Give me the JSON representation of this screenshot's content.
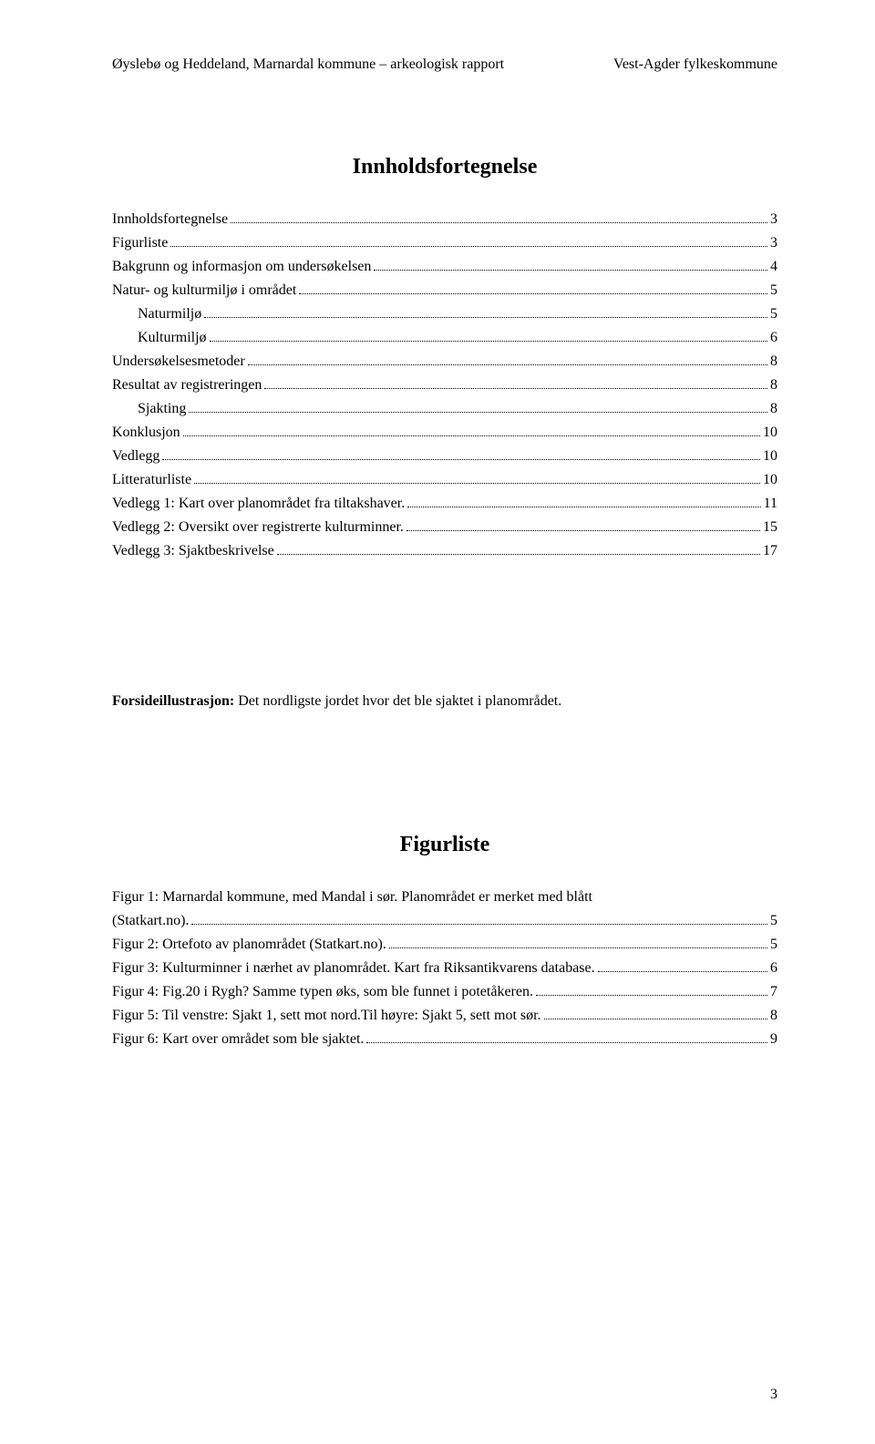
{
  "header": {
    "left": "Øyslebø og Heddeland, Marnardal kommune – arkeologisk rapport",
    "right": "Vest-Agder fylkeskommune"
  },
  "title_main": "Innholdsfortegnelse",
  "toc": [
    {
      "label": "Innholdsfortegnelse",
      "page": "3",
      "indent": false
    },
    {
      "label": "Figurliste",
      "page": "3",
      "indent": false
    },
    {
      "label": "Bakgrunn og informasjon om undersøkelsen",
      "page": "4",
      "indent": false
    },
    {
      "label": "Natur- og kulturmiljø i området",
      "page": "5",
      "indent": false
    },
    {
      "label": "Naturmiljø",
      "page": "5",
      "indent": true
    },
    {
      "label": "Kulturmiljø",
      "page": "6",
      "indent": true
    },
    {
      "label": "Undersøkelsesmetoder",
      "page": "8",
      "indent": false
    },
    {
      "label": "Resultat av registreringen",
      "page": "8",
      "indent": false
    },
    {
      "label": "Sjakting",
      "page": "8",
      "indent": true
    },
    {
      "label": "Konklusjon",
      "page": "10",
      "indent": false
    },
    {
      "label": "Vedlegg",
      "page": "10",
      "indent": false
    },
    {
      "label": "Litteraturliste",
      "page": "10",
      "indent": false
    },
    {
      "label": "Vedlegg 1: Kart over planområdet fra tiltakshaver.",
      "page": "11",
      "indent": false
    },
    {
      "label": "Vedlegg 2: Oversikt over registrerte kulturminner.",
      "page": "15",
      "indent": false
    },
    {
      "label": "Vedlegg 3: Sjaktbeskrivelse",
      "page": "17",
      "indent": false
    }
  ],
  "forside": {
    "bold": "Forsideillustrasjon:",
    "rest": " Det nordligste jordet hvor det ble sjaktet i planområdet."
  },
  "title_sub": "Figurliste",
  "figs": [
    {
      "label_a": "Figur 1: Marnardal kommune, med Mandal i sør. Planområdet er merket med blått",
      "label_b": "(Statkart.no).",
      "page": "5"
    },
    {
      "label_a": "Figur 2: Ortefoto av planområdet (Statkart.no).",
      "page": "5"
    },
    {
      "label_a": "Figur 3: Kulturminner i nærhet av planområdet. Kart fra Riksantikvarens database.",
      "page": "6"
    },
    {
      "label_a": "Figur 4: Fig.20 i Rygh? Samme typen øks, som ble funnet i potetåkeren.",
      "page": "7"
    },
    {
      "label_a": "Figur 5: Til venstre: Sjakt 1, sett mot nord.Til høyre: Sjakt 5, sett mot sør.",
      "page": "8"
    },
    {
      "label_a": "Figur 6: Kart over området som ble sjaktet.",
      "page": "9"
    }
  ],
  "page_number": "3"
}
